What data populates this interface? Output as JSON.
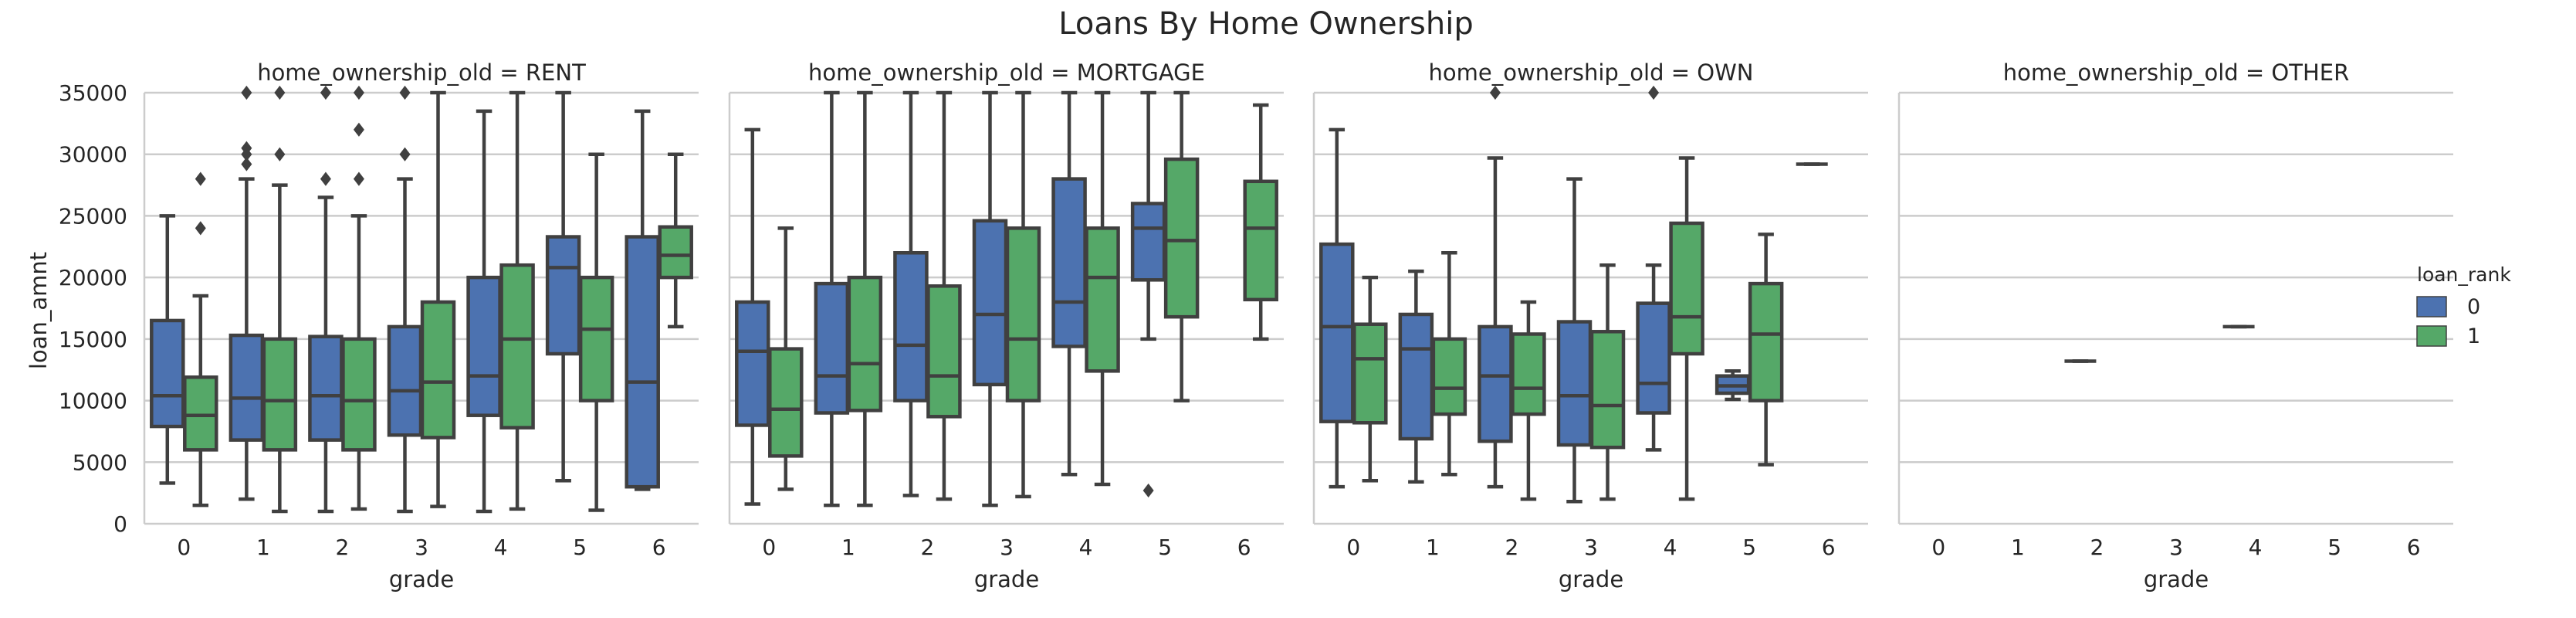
{
  "chart_data": {
    "type": "box",
    "title": "Loans By Home Ownership",
    "ylabel": "loan_amnt",
    "xlabel": "grade",
    "ylim": [
      0,
      35000
    ],
    "yticks": [
      0,
      5000,
      10000,
      15000,
      20000,
      25000,
      30000,
      35000
    ],
    "categories": [
      "0",
      "1",
      "2",
      "3",
      "4",
      "5",
      "6"
    ],
    "grid": "horizontal",
    "hue_label": "loan_rank",
    "hue_levels": [
      "0",
      "1"
    ],
    "colors": {
      "0": "#4c72b0",
      "1": "#55a868"
    },
    "legend_position": "right",
    "panels": [
      {
        "title": "home_ownership_old = RENT",
        "boxes": [
          {
            "grade": "0",
            "rank": "0",
            "min": 3300,
            "q1": 7900,
            "median": 10400,
            "q3": 16500,
            "max": 25000,
            "outliers": []
          },
          {
            "grade": "0",
            "rank": "1",
            "min": 1500,
            "q1": 6000,
            "median": 8800,
            "q3": 11900,
            "max": 18500,
            "outliers": [
              24000,
              28000
            ]
          },
          {
            "grade": "1",
            "rank": "0",
            "min": 2000,
            "q1": 6800,
            "median": 10200,
            "q3": 15300,
            "max": 28000,
            "outliers": [
              29200,
              30000,
              30500,
              35000
            ]
          },
          {
            "grade": "1",
            "rank": "1",
            "min": 1000,
            "q1": 6000,
            "median": 10000,
            "q3": 15000,
            "max": 27500,
            "outliers": [
              30000,
              35000
            ]
          },
          {
            "grade": "2",
            "rank": "0",
            "min": 1000,
            "q1": 6800,
            "median": 10400,
            "q3": 15200,
            "max": 26500,
            "outliers": [
              28000,
              35000
            ]
          },
          {
            "grade": "2",
            "rank": "1",
            "min": 1200,
            "q1": 6000,
            "median": 10000,
            "q3": 15000,
            "max": 25000,
            "outliers": [
              28000,
              32000,
              35000
            ]
          },
          {
            "grade": "3",
            "rank": "0",
            "min": 1000,
            "q1": 7200,
            "median": 10800,
            "q3": 16000,
            "max": 28000,
            "outliers": [
              30000,
              35000
            ]
          },
          {
            "grade": "3",
            "rank": "1",
            "min": 1400,
            "q1": 7000,
            "median": 11500,
            "q3": 18000,
            "max": 35000,
            "outliers": []
          },
          {
            "grade": "4",
            "rank": "0",
            "min": 1000,
            "q1": 8800,
            "median": 12000,
            "q3": 20000,
            "max": 33500,
            "outliers": []
          },
          {
            "grade": "4",
            "rank": "1",
            "min": 1200,
            "q1": 7800,
            "median": 15000,
            "q3": 21000,
            "max": 35000,
            "outliers": []
          },
          {
            "grade": "5",
            "rank": "0",
            "min": 3500,
            "q1": 13800,
            "median": 20800,
            "q3": 23300,
            "max": 35000,
            "outliers": []
          },
          {
            "grade": "5",
            "rank": "1",
            "min": 1100,
            "q1": 10000,
            "median": 15800,
            "q3": 20000,
            "max": 30000,
            "outliers": []
          },
          {
            "grade": "6",
            "rank": "0",
            "min": 2800,
            "q1": 3000,
            "median": 11500,
            "q3": 23300,
            "max": 33500,
            "outliers": []
          },
          {
            "grade": "6",
            "rank": "1",
            "min": 16000,
            "q1": 20000,
            "median": 21800,
            "q3": 24100,
            "max": 30000,
            "outliers": []
          }
        ]
      },
      {
        "title": "home_ownership_old = MORTGAGE",
        "boxes": [
          {
            "grade": "0",
            "rank": "0",
            "min": 1600,
            "q1": 8000,
            "median": 14000,
            "q3": 18000,
            "max": 32000,
            "outliers": []
          },
          {
            "grade": "0",
            "rank": "1",
            "min": 2800,
            "q1": 5500,
            "median": 9300,
            "q3": 14200,
            "max": 24000,
            "outliers": []
          },
          {
            "grade": "1",
            "rank": "0",
            "min": 1500,
            "q1": 9000,
            "median": 12000,
            "q3": 19500,
            "max": 35000,
            "outliers": []
          },
          {
            "grade": "1",
            "rank": "1",
            "min": 1500,
            "q1": 9200,
            "median": 13000,
            "q3": 20000,
            "max": 35000,
            "outliers": []
          },
          {
            "grade": "2",
            "rank": "0",
            "min": 2300,
            "q1": 10000,
            "median": 14500,
            "q3": 22000,
            "max": 35000,
            "outliers": []
          },
          {
            "grade": "2",
            "rank": "1",
            "min": 2000,
            "q1": 8700,
            "median": 12000,
            "q3": 19300,
            "max": 35000,
            "outliers": []
          },
          {
            "grade": "3",
            "rank": "0",
            "min": 1500,
            "q1": 11300,
            "median": 17000,
            "q3": 24600,
            "max": 35000,
            "outliers": []
          },
          {
            "grade": "3",
            "rank": "1",
            "min": 2200,
            "q1": 10000,
            "median": 15000,
            "q3": 24000,
            "max": 35000,
            "outliers": []
          },
          {
            "grade": "4",
            "rank": "0",
            "min": 4000,
            "q1": 14400,
            "median": 18000,
            "q3": 28000,
            "max": 35000,
            "outliers": []
          },
          {
            "grade": "4",
            "rank": "1",
            "min": 3200,
            "q1": 12400,
            "median": 20000,
            "q3": 24000,
            "max": 35000,
            "outliers": []
          },
          {
            "grade": "5",
            "rank": "0",
            "min": 15000,
            "q1": 19800,
            "median": 24000,
            "q3": 26000,
            "max": 35000,
            "outliers": [
              2700
            ]
          },
          {
            "grade": "5",
            "rank": "1",
            "min": 10000,
            "q1": 16800,
            "median": 23000,
            "q3": 29600,
            "max": 35000,
            "outliers": []
          },
          {
            "grade": "6",
            "rank": "1",
            "min": 15000,
            "q1": 18200,
            "median": 24000,
            "q3": 27800,
            "max": 34000,
            "outliers": []
          }
        ]
      },
      {
        "title": "home_ownership_old = OWN",
        "boxes": [
          {
            "grade": "0",
            "rank": "0",
            "min": 3000,
            "q1": 8300,
            "median": 16000,
            "q3": 22700,
            "max": 32000,
            "outliers": []
          },
          {
            "grade": "0",
            "rank": "1",
            "min": 3500,
            "q1": 8200,
            "median": 13400,
            "q3": 16200,
            "max": 20000,
            "outliers": []
          },
          {
            "grade": "1",
            "rank": "0",
            "min": 3400,
            "q1": 6900,
            "median": 14200,
            "q3": 17000,
            "max": 20500,
            "outliers": []
          },
          {
            "grade": "1",
            "rank": "1",
            "min": 4000,
            "q1": 8900,
            "median": 11000,
            "q3": 15000,
            "max": 22000,
            "outliers": []
          },
          {
            "grade": "2",
            "rank": "0",
            "min": 3000,
            "q1": 6700,
            "median": 12000,
            "q3": 16000,
            "max": 29700,
            "outliers": [
              35000
            ]
          },
          {
            "grade": "2",
            "rank": "1",
            "min": 2000,
            "q1": 8900,
            "median": 11000,
            "q3": 15400,
            "max": 18000,
            "outliers": []
          },
          {
            "grade": "3",
            "rank": "0",
            "min": 1800,
            "q1": 6400,
            "median": 10400,
            "q3": 16400,
            "max": 28000,
            "outliers": []
          },
          {
            "grade": "3",
            "rank": "1",
            "min": 2000,
            "q1": 6200,
            "median": 9600,
            "q3": 15600,
            "max": 21000,
            "outliers": []
          },
          {
            "grade": "4",
            "rank": "0",
            "min": 6000,
            "q1": 9000,
            "median": 11400,
            "q3": 17900,
            "max": 21000,
            "outliers": [
              35000
            ]
          },
          {
            "grade": "4",
            "rank": "1",
            "min": 2000,
            "q1": 13800,
            "median": 16800,
            "q3": 24400,
            "max": 29700,
            "outliers": []
          },
          {
            "grade": "5",
            "rank": "0",
            "min": 10100,
            "q1": 10600,
            "median": 11200,
            "q3": 12000,
            "max": 12400,
            "outliers": []
          },
          {
            "grade": "5",
            "rank": "1",
            "min": 4800,
            "q1": 10000,
            "median": 15400,
            "q3": 19500,
            "max": 23500,
            "outliers": []
          },
          {
            "grade": "6",
            "rank": "0",
            "min": 29200,
            "q1": 29200,
            "median": 29200,
            "q3": 29200,
            "max": 29200,
            "outliers": []
          }
        ]
      },
      {
        "title": "home_ownership_old = OTHER",
        "boxes": [
          {
            "grade": "2",
            "rank": "0",
            "min": 13200,
            "q1": 13200,
            "median": 13200,
            "q3": 13200,
            "max": 13200,
            "outliers": []
          },
          {
            "grade": "4",
            "rank": "0",
            "min": 16000,
            "q1": 16000,
            "median": 16000,
            "q3": 16000,
            "max": 16000,
            "outliers": []
          }
        ]
      }
    ]
  }
}
